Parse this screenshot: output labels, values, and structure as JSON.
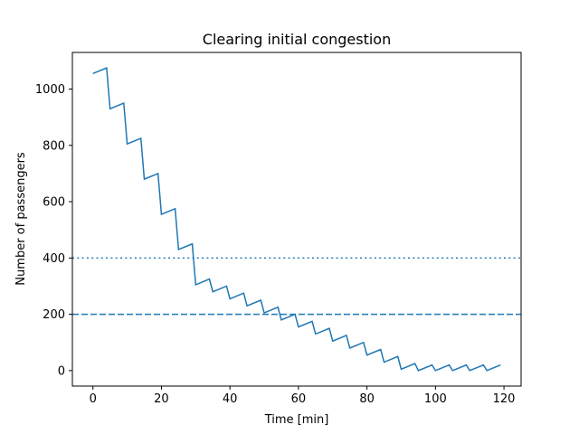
{
  "chart_data": {
    "type": "line",
    "title": "Clearing initial congestion",
    "xlabel": "Time [min]",
    "ylabel": "Number of passengers",
    "xlim": [
      -6,
      125
    ],
    "ylim": [
      -55,
      1130
    ],
    "xticks": [
      0,
      20,
      40,
      60,
      80,
      100,
      120
    ],
    "yticks": [
      0,
      200,
      400,
      600,
      800,
      1000
    ],
    "grid": false,
    "line_color": "#1f77b4",
    "series": [
      {
        "x": [
          0,
          4,
          5,
          9,
          10,
          14,
          15,
          19,
          20,
          24,
          25,
          29,
          30,
          34,
          35,
          39,
          40,
          44,
          45,
          49,
          50,
          54,
          55,
          59,
          60,
          64,
          65,
          69,
          70,
          74,
          75,
          79,
          80,
          84,
          85,
          89,
          90,
          94,
          95,
          99,
          100,
          104,
          105,
          109,
          110,
          114,
          115,
          119
        ],
        "y": [
          1055,
          1075,
          930,
          950,
          805,
          825,
          680,
          700,
          555,
          575,
          430,
          450,
          305,
          325,
          280,
          300,
          255,
          275,
          230,
          250,
          205,
          225,
          180,
          200,
          155,
          175,
          130,
          150,
          105,
          125,
          80,
          100,
          55,
          75,
          30,
          50,
          5,
          25,
          0,
          20,
          0,
          20,
          0,
          20,
          0,
          20,
          0,
          20
        ]
      }
    ],
    "reference_lines": [
      {
        "y": 400,
        "style": "dotted",
        "color": "#1f77b4"
      },
      {
        "y": 200,
        "style": "dashed",
        "color": "#1f77b4"
      }
    ]
  }
}
